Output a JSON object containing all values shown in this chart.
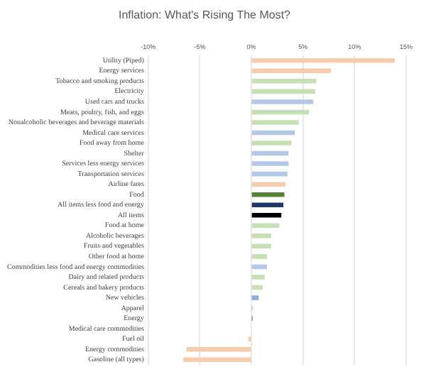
{
  "chart_data": {
    "type": "bar",
    "orientation": "horizontal",
    "title": "Inflation: What's Rising The Most?",
    "categories": [
      "Utility (Piped)",
      "Energy services",
      "Tobacco and smoking products",
      "Electricity",
      "Used cars and trucks",
      "Meats, poultry, fish, and eggs",
      "Nonalcoholic beverages and beverage materials",
      "Medical care services",
      "Food away from home",
      "Shelter",
      "Services less energy services",
      "Transportation services",
      "Airline fares",
      "Food",
      "All items less food and energy",
      "All items",
      "Food at home",
      "Alcoholic beverages",
      "Fruits and vegetables",
      "Other food at home",
      "Commodities less food and energy commodities",
      "Dairy and related products",
      "Cereals and bakery products",
      "New vehicles",
      "Apparel",
      "Energy",
      "Medical care commodities",
      "Fuel oil",
      "Energy commodities",
      "Gasoline (all types)"
    ],
    "values": [
      13.9,
      7.7,
      6.3,
      6.2,
      6.0,
      5.6,
      4.6,
      4.2,
      3.9,
      3.6,
      3.6,
      3.5,
      3.3,
      3.2,
      3.1,
      2.9,
      2.7,
      1.9,
      1.9,
      1.5,
      1.5,
      1.3,
      1.1,
      0.7,
      0.1,
      0.1,
      0,
      -0.3,
      -6.3,
      -6.6
    ],
    "colors": [
      "#f8cbad",
      "#f8cbad",
      "#c5e0b4",
      "#c5e0b4",
      "#b4c7e7",
      "#c5e0b4",
      "#c5e0b4",
      "#b4c7e7",
      "#c5e0b4",
      "#b4c7e7",
      "#b4c7e7",
      "#b4c7e7",
      "#f8cbad",
      "#548235",
      "#203864",
      "#000000",
      "#c5e0b4",
      "#c5e0b4",
      "#c5e0b4",
      "#c5e0b4",
      "#b4c7e7",
      "#c5e0b4",
      "#c5e0b4",
      "#8faadc",
      "#8faadc",
      "#843c0c",
      "#b4c7e7",
      "#f8cbad",
      "#f8cbad",
      "#f8cbad"
    ],
    "xlim": [
      -10,
      15
    ],
    "xticks": [
      {
        "value": -10,
        "label": "-10%"
      },
      {
        "value": -5,
        "label": "-5%"
      },
      {
        "value": 0,
        "label": "0%"
      },
      {
        "value": 5,
        "label": "5%"
      },
      {
        "value": 10,
        "label": "10%"
      },
      {
        "value": 15,
        "label": "15%"
      }
    ],
    "grid": "x"
  }
}
